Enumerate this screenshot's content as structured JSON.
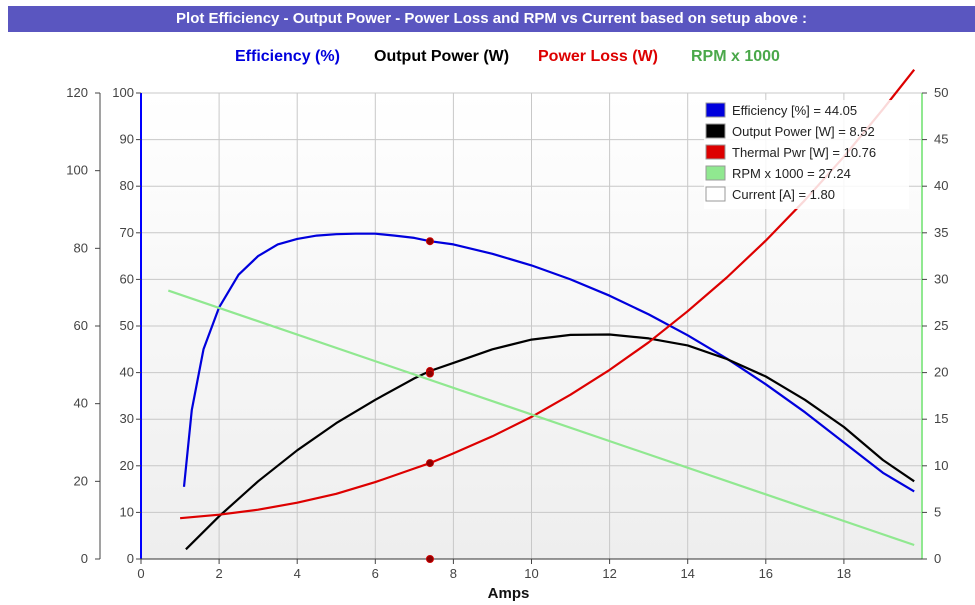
{
  "header": {
    "title": "Plot Efficiency - Output Power - Power Loss and RPM vs Current based on setup above :"
  },
  "top_legend": [
    {
      "label": "Efficiency (%)",
      "color": "#0000dd"
    },
    {
      "label": "Output Power (W)",
      "color": "#000000"
    },
    {
      "label": "Power Loss (W)",
      "color": "#dd0000"
    },
    {
      "label": "RPM x 1000",
      "color": "#4aa84a"
    }
  ],
  "chart_data": {
    "type": "line",
    "xlabel": "Amps",
    "x_ticks": [
      0,
      2,
      4,
      6,
      8,
      10,
      12,
      14,
      16,
      18
    ],
    "xlim": [
      0,
      20
    ],
    "outer_left_ticks": [
      0,
      20,
      40,
      60,
      80,
      100,
      120
    ],
    "inner_left_ticks": [
      0,
      10,
      20,
      30,
      40,
      50,
      60,
      70,
      80,
      90,
      100
    ],
    "right_ticks": [
      0,
      5,
      10,
      15,
      20,
      25,
      30,
      35,
      40,
      45,
      50
    ],
    "grid": true,
    "series": [
      {
        "name": "Efficiency [%]",
        "axis": "inner_left",
        "color": "#0000dd",
        "x": [
          1.1,
          1.3,
          1.6,
          2.0,
          2.5,
          3.0,
          3.5,
          4.0,
          4.5,
          5.0,
          5.5,
          6.0,
          6.5,
          7.0,
          7.4,
          8.0,
          9.0,
          10.0,
          11.0,
          12.0,
          13.0,
          14.0,
          15.0,
          16.0,
          17.0,
          18.0,
          19.0,
          19.8
        ],
        "y": [
          15.5,
          32,
          45,
          54,
          61,
          65,
          67.5,
          68.7,
          69.4,
          69.7,
          69.8,
          69.8,
          69.4,
          68.9,
          68.2,
          67.5,
          65.5,
          63.0,
          60.0,
          56.5,
          52.5,
          48.0,
          43.0,
          37.5,
          31.5,
          25.0,
          18.5,
          14.5
        ]
      },
      {
        "name": "Output Power [W]",
        "axis": "outer_left",
        "color": "#000000",
        "x": [
          1.15,
          2,
          3,
          4,
          5,
          6,
          7,
          7.4,
          8,
          9,
          10,
          11,
          12,
          13,
          14,
          15,
          16,
          17,
          18,
          19,
          19.8
        ],
        "y": [
          2.5,
          11,
          20,
          28,
          35,
          41,
          46.5,
          48.4,
          50.5,
          54,
          56.5,
          57.7,
          57.8,
          56.8,
          55,
          51.5,
          47,
          41,
          34,
          25.5,
          20
        ]
      },
      {
        "name": "Thermal Pwr [W]",
        "axis": "outer_left",
        "color": "#dd0000",
        "x": [
          1.0,
          2,
          3,
          4,
          5,
          6,
          7,
          7.4,
          8,
          9,
          10,
          11,
          12,
          13,
          14,
          15,
          16,
          17,
          18,
          19,
          19.8
        ],
        "y": [
          10.5,
          11.4,
          12.7,
          14.5,
          16.8,
          19.8,
          23.3,
          24.7,
          27.2,
          31.6,
          36.6,
          42.3,
          48.7,
          55.8,
          63.8,
          72.5,
          82,
          92.4,
          103.6,
          115.8,
          126
        ]
      },
      {
        "name": "RPM x 1000",
        "axis": "right",
        "color": "#90e890",
        "x": [
          0.7,
          19.8
        ],
        "y": [
          28.8,
          1.5
        ]
      }
    ],
    "markers": [
      {
        "axis": "inner_left",
        "x": 7.4,
        "y": 68.2
      },
      {
        "axis": "outer_left",
        "x": 7.4,
        "y": 48.4
      },
      {
        "axis": "outer_left",
        "x": 7.4,
        "y": 24.7
      },
      {
        "axis": "right",
        "x": 7.4,
        "y": 19.9
      },
      {
        "axis": "outer_left",
        "x": 7.4,
        "y": 0
      }
    ],
    "legend_box": [
      {
        "label": "Efficiency [%] = 44.05",
        "color": "#0000dd"
      },
      {
        "label": "Output Power [W] = 8.52",
        "color": "#000000"
      },
      {
        "label": "Thermal Pwr [W] = 10.76",
        "color": "#dd0000"
      },
      {
        "label": "RPM x 1000 = 27.24",
        "color": "#90e890"
      },
      {
        "label": "Current [A] = 1.80",
        "color": "#ffffff"
      }
    ]
  }
}
